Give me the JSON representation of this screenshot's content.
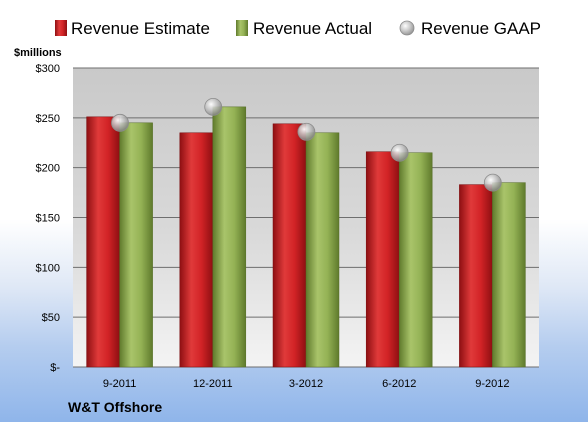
{
  "chart_data": {
    "type": "bar",
    "company": "W&T Offshore",
    "ylabel": "$millions",
    "categories": [
      "9-2011",
      "12-2011",
      "3-2012",
      "6-2012",
      "9-2012"
    ],
    "series": [
      {
        "name": "Revenue Estimate",
        "kind": "bar",
        "color": "#c0181d",
        "values": [
          251,
          235,
          244,
          216,
          183
        ]
      },
      {
        "name": "Revenue Actual",
        "kind": "bar",
        "color": "#8aaa46",
        "values": [
          245,
          261,
          235,
          215,
          185
        ]
      },
      {
        "name": "Revenue GAAP",
        "kind": "marker",
        "color": "#a9a9a9",
        "values": [
          245,
          261,
          236,
          215,
          185
        ]
      }
    ],
    "ylim": [
      0,
      300
    ],
    "yticks": [
      0,
      50,
      100,
      150,
      200,
      250,
      300
    ],
    "ytick_labels": [
      "$-",
      "$50",
      "$100",
      "$150",
      "$200",
      "$250",
      "$300"
    ],
    "grid": true,
    "legend_position": "top"
  }
}
